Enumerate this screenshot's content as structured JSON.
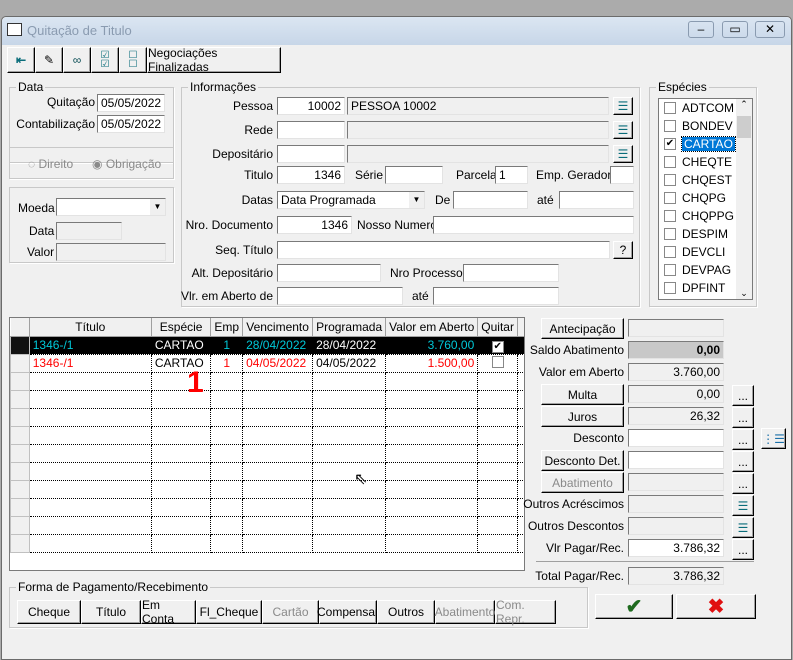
{
  "window": {
    "title": "Quitação de Titulo"
  },
  "toolbar": {
    "negociacoes": "Negociações Finalizadas",
    "icons": [
      "exit-door-icon",
      "eraser-icon",
      "binoculars-icon",
      "check-all-icon",
      "uncheck-all-icon"
    ]
  },
  "data_group": {
    "title": "Data",
    "quitacao_label": "Quitação",
    "quitacao": "05/05/2022",
    "contabilizacao_label": "Contabilização",
    "contabilizacao": "05/05/2022"
  },
  "direito_group": {
    "direito": "Direito",
    "obrigacao": "Obrigação"
  },
  "moeda_group": {
    "moeda_label": "Moeda",
    "moeda": "",
    "data_label": "Data",
    "data": "",
    "valor_label": "Valor",
    "valor": ""
  },
  "info": {
    "title": "Informações",
    "pessoa_label": "Pessoa",
    "pessoa_code": "10002",
    "pessoa_name": "PESSOA 10002",
    "rede_label": "Rede",
    "depositario_label": "Depositário",
    "titulo_label": "Titulo",
    "titulo": "1346",
    "serie_label": "Série",
    "serie": "",
    "parcela_label": "Parcela",
    "parcela": "1",
    "emp_label": "Emp. Geradora",
    "emp": "",
    "datas_label": "Datas",
    "datas": "Data Programada",
    "de_label": "De",
    "ate_label": "até",
    "nrodoc_label": "Nro. Documento",
    "nrodoc": "1346",
    "nosso_label": "Nosso Numero",
    "seq_label": "Seq. Título",
    "seq_btn": "?",
    "altdep_label": "Alt. Depositário",
    "nroproc_label": "Nro Processo",
    "vlr_label": "Vlr. em Aberto de",
    "vlr_ate_label": "até"
  },
  "especies": {
    "title": "Espécies",
    "items": [
      {
        "label": "ADTCOM",
        "checked": false
      },
      {
        "label": "BONDEV",
        "checked": false
      },
      {
        "label": "CARTAO",
        "checked": true
      },
      {
        "label": "CHEQTE",
        "checked": false
      },
      {
        "label": "CHQEST",
        "checked": false
      },
      {
        "label": "CHQPG",
        "checked": false
      },
      {
        "label": "CHQPPG",
        "checked": false
      },
      {
        "label": "DESPIM",
        "checked": false
      },
      {
        "label": "DEVCLI",
        "checked": false
      },
      {
        "label": "DEVPAG",
        "checked": false
      },
      {
        "label": "DPFINT",
        "checked": false
      }
    ]
  },
  "grid": {
    "columns": [
      "Título",
      "Espécie",
      "Emp",
      "Vencimento",
      "Programada",
      "Valor em Aberto",
      "Quitar"
    ],
    "rows": [
      {
        "titulo": "1346-/1",
        "especie": "CARTAO",
        "emp": "1",
        "venc": "28/04/2022",
        "prog": "28/04/2022",
        "valor": "3.760,00",
        "quitar": true
      },
      {
        "titulo": "1346-/1",
        "especie": "CARTAO",
        "emp": "1",
        "venc": "04/05/2022",
        "prog": "04/05/2022",
        "valor": "1.500,00",
        "quitar": false
      }
    ],
    "annotation": "1"
  },
  "totals": {
    "antecipacao": "Antecipação",
    "saldo_label": "Saldo Abatimento",
    "saldo": "0,00",
    "valor_label": "Valor em Aberto",
    "valor": "3.760,00",
    "multa": "Multa",
    "multa_val": "0,00",
    "juros": "Juros",
    "juros_val": "26,32",
    "desconto_label": "Desconto",
    "desconto_det": "Desconto Det.",
    "abatimento": "Abatimento",
    "outros_acr": "Outros Acréscimos",
    "outros_desc": "Outros Descontos",
    "vlr_pagar_label": "Vlr Pagar/Rec.",
    "vlr_pagar": "3.786,32",
    "total_label": "Total Pagar/Rec.",
    "total": "3.786,32",
    "ellipsis": "..."
  },
  "forma": {
    "title": "Forma de Pagamento/Recebimento",
    "buttons": [
      {
        "label": "Cheque",
        "enabled": true
      },
      {
        "label": "Título",
        "enabled": true
      },
      {
        "label": "Em Conta",
        "enabled": true
      },
      {
        "label": "Fl_Cheque",
        "enabled": true
      },
      {
        "label": "Cartão",
        "enabled": false
      },
      {
        "label": "Compensar",
        "enabled": true
      },
      {
        "label": "Outros",
        "enabled": true
      },
      {
        "label": "Abatimento",
        "enabled": false
      },
      {
        "label": "Com. Repr.",
        "enabled": false
      }
    ]
  },
  "colors": {
    "selected_text": "#00c8d8",
    "red": "#ff0000",
    "ok": "#1f6b1f",
    "cancel": "#e01010"
  }
}
